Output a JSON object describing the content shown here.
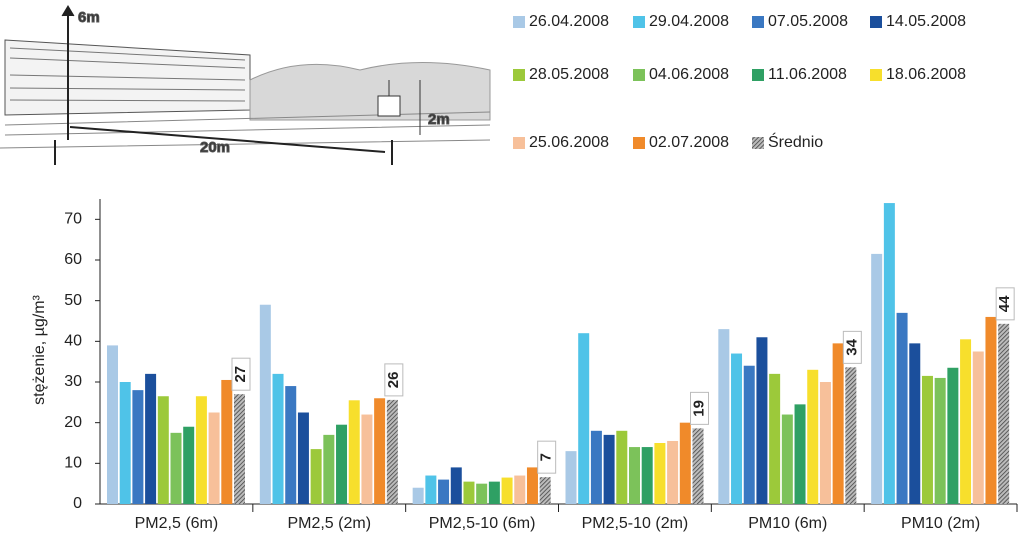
{
  "illustration": {
    "labels": [
      "6m",
      "2m",
      "20m"
    ]
  },
  "chart_data": {
    "type": "bar",
    "y_label": "stężenie, µg/m³",
    "categories": [
      "PM2,5 (6m)",
      "PM2,5 (2m)",
      "PM2,5-10 (6m)",
      "PM2,5-10 (2m)",
      "PM10 (6m)",
      "PM10 (2m)"
    ],
    "ylim": [
      0,
      75
    ],
    "yticks": [
      0,
      10,
      20,
      30,
      40,
      50,
      60,
      70
    ],
    "series": [
      {
        "name": "26.04.2008",
        "color": "#a9c9e6",
        "values": [
          39,
          49,
          4,
          13,
          43,
          61.5
        ]
      },
      {
        "name": "29.04.2008",
        "color": "#4fc3e8",
        "values": [
          30,
          32,
          7,
          42,
          37,
          74
        ]
      },
      {
        "name": "07.05.2008",
        "color": "#3a78c2",
        "values": [
          28,
          29,
          6,
          18,
          34,
          47
        ]
      },
      {
        "name": "14.05.2008",
        "color": "#1b4f9c",
        "values": [
          32,
          22.5,
          9,
          17,
          41,
          39.5
        ]
      },
      {
        "name": "28.05.2008",
        "color": "#9cc93a",
        "values": [
          26.5,
          13.5,
          5.5,
          18,
          32,
          31.5
        ]
      },
      {
        "name": "04.06.2008",
        "color": "#7cc25a",
        "values": [
          17.5,
          17,
          5,
          14,
          22,
          31
        ]
      },
      {
        "name": "11.06.2008",
        "color": "#2fa064",
        "values": [
          19,
          19.5,
          5.5,
          14,
          24.5,
          33.5
        ]
      },
      {
        "name": "18.06.2008",
        "color": "#f7df2c",
        "values": [
          26.5,
          25.5,
          6.5,
          15,
          33,
          40.5
        ]
      },
      {
        "name": "25.06.2008",
        "color": "#f7c09a",
        "values": [
          22.5,
          22,
          7,
          15.5,
          30,
          37.5
        ]
      },
      {
        "name": "02.07.2008",
        "color": "#f08a2a",
        "values": [
          30.5,
          26,
          9,
          20,
          39.5,
          46
        ]
      },
      {
        "name": "Średnio",
        "color": "#555555",
        "hatch": true,
        "values": [
          27,
          25.6,
          6.6,
          18.6,
          33.6,
          44.3
        ],
        "value_labels": [
          "27",
          "26",
          "7",
          "19",
          "34",
          "44"
        ]
      }
    ]
  }
}
